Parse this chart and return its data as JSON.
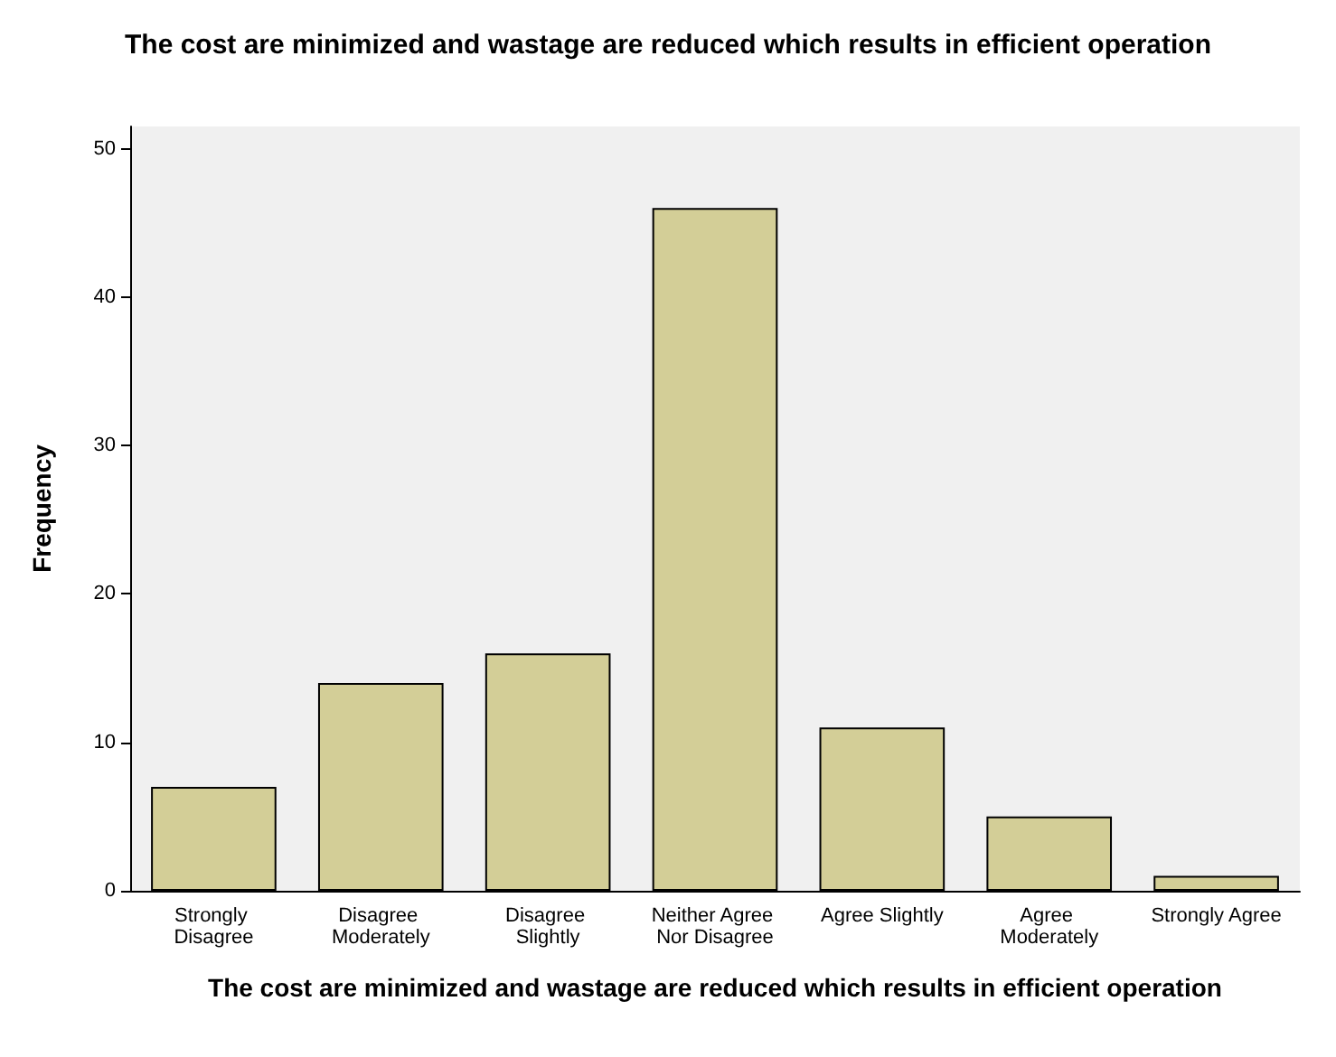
{
  "chart_data": {
    "type": "bar",
    "title": "The cost are minimized and wastage are reduced which results in efficient operation",
    "xlabel": "The cost are minimized and wastage are reduced which results in efficient operation",
    "ylabel": "Frequency",
    "categories": [
      "Strongly Disagree",
      "Disagree Moderately",
      "Disagree Slightly",
      "Neither Agree Nor Disagree",
      "Agree Slightly",
      "Agree Moderately",
      "Strongly Agree"
    ],
    "values": [
      7,
      14,
      16,
      46,
      11,
      5,
      1
    ],
    "color": "#d3ce97",
    "ylim": [
      0,
      51.5
    ],
    "yticks": [
      0,
      10,
      20,
      30,
      40,
      50
    ],
    "grid": false
  }
}
